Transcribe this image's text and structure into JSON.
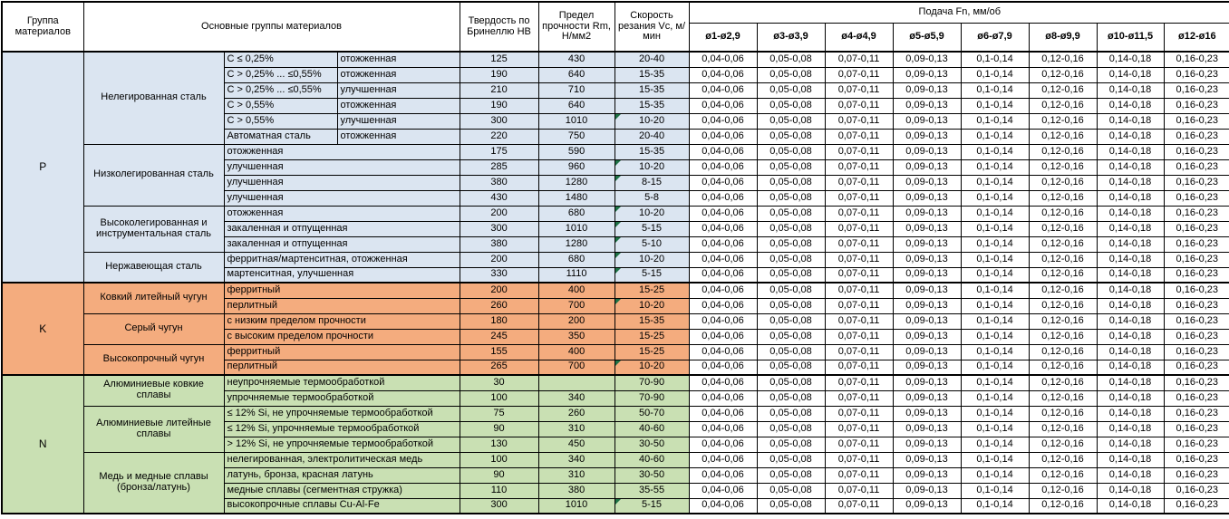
{
  "colors": {
    "group_p_blue": "#DBE5F1",
    "group_k_orange": "#F4AC7E",
    "group_n_green": "#C9E0B3",
    "note_marker_green": "#1E7145",
    "grid_border": "#000000"
  },
  "table": {
    "headers": {
      "group": "Группа материалов",
      "main_groups": "Основные группы материалов",
      "hardness": "Твердость по Бринеллю HB",
      "strength": "Предел прочности Rm, Н/мм2",
      "speed": "Скорость резания Vc, м/мин",
      "feed": "Подача Fn, мм/об",
      "diameters": [
        "ø1-ø2,9",
        "ø3-ø3,9",
        "ø4-ø4,9",
        "ø5-ø5,9",
        "ø6-ø7,9",
        "ø8-ø9,9",
        "ø10-ø11,5",
        "ø12-ø16"
      ]
    },
    "feed_values": [
      "0,04-0,06",
      "0,05-0,08",
      "0,07-0,11",
      "0,09-0,13",
      "0,1-0,14",
      "0,12-0,16",
      "0,14-0,18",
      "0,16-0,23"
    ],
    "groups": [
      {
        "id": "p",
        "letter": "P",
        "color": "#DBE5F1",
        "blocks": [
          {
            "name": "Нелегированная сталь",
            "rows": [
              {
                "c": "C ≤ 0,25%",
                "state": "отожженная",
                "hb": "125",
                "rm": "430",
                "vc": "20-40",
                "note": false
              },
              {
                "c": "C > 0,25% ... ≤0,55%",
                "state": "отожженная",
                "hb": "190",
                "rm": "640",
                "vc": "15-35",
                "note": false
              },
              {
                "c": "C > 0,25% ... ≤0,55%",
                "state": "улучшенная",
                "hb": "210",
                "rm": "710",
                "vc": "15-35",
                "note": false
              },
              {
                "c": "C > 0,55%",
                "state": "отожженная",
                "hb": "190",
                "rm": "640",
                "vc": "15-35",
                "note": false
              },
              {
                "c": "C > 0,55%",
                "state": "улучшенная",
                "hb": "300",
                "rm": "1010",
                "vc": "10-20",
                "note": true
              },
              {
                "c": "Автоматная сталь",
                "state": "отожженная",
                "hb": "220",
                "rm": "750",
                "vc": "20-40",
                "note": false
              }
            ]
          },
          {
            "name": "Низколегированная сталь",
            "rows": [
              {
                "desc": "отожженная",
                "hb": "175",
                "rm": "590",
                "vc": "15-35",
                "note": false
              },
              {
                "desc": "улучшенная",
                "hb": "285",
                "rm": "960",
                "vc": "10-20",
                "note": true
              },
              {
                "desc": "улучшенная",
                "hb": "380",
                "rm": "1280",
                "vc": "8-15",
                "note": true
              },
              {
                "desc": "улучшенная",
                "hb": "430",
                "rm": "1480",
                "vc": "5-8",
                "note": false
              }
            ]
          },
          {
            "name": "Высоколегированная и инструментальная сталь",
            "rows": [
              {
                "desc": "отожженная",
                "hb": "200",
                "rm": "680",
                "vc": "10-20",
                "note": true
              },
              {
                "desc": "закаленная и отпущенная",
                "hb": "300",
                "rm": "1010",
                "vc": "5-15",
                "note": true
              },
              {
                "desc": "закаленная и отпущенная",
                "hb": "380",
                "rm": "1280",
                "vc": "5-10",
                "note": true
              }
            ]
          },
          {
            "name": "Нержавеющая сталь",
            "rows": [
              {
                "desc": "ферритная/мартенситная, отожженная",
                "hb": "200",
                "rm": "680",
                "vc": "10-20",
                "note": true
              },
              {
                "desc": "мартенситная, улучшенная",
                "hb": "330",
                "rm": "1110",
                "vc": "5-15",
                "note": true
              }
            ]
          }
        ]
      },
      {
        "id": "k",
        "letter": "K",
        "color": "#F4AC7E",
        "blocks": [
          {
            "name": "Ковкий литейный чугун",
            "rows": [
              {
                "desc": "ферритный",
                "hb": "200",
                "rm": "400",
                "vc": "15-25",
                "note": false
              },
              {
                "desc": "перлитный",
                "hb": "260",
                "rm": "700",
                "vc": "10-20",
                "note": true
              }
            ]
          },
          {
            "name": "Серый чугун",
            "rows": [
              {
                "desc": "с низким пределом прочности",
                "hb": "180",
                "rm": "200",
                "vc": "15-35",
                "note": false
              },
              {
                "desc": "с высоким пределом прочности",
                "hb": "245",
                "rm": "350",
                "vc": "15-25",
                "note": false
              }
            ]
          },
          {
            "name": "Высокопрочный чугун",
            "rows": [
              {
                "desc": "ферритный",
                "hb": "155",
                "rm": "400",
                "vc": "15-25",
                "note": false
              },
              {
                "desc": "перлитный",
                "hb": "265",
                "rm": "700",
                "vc": "10-20",
                "note": true
              }
            ]
          }
        ]
      },
      {
        "id": "n",
        "letter": "N",
        "color": "#C9E0B3",
        "blocks": [
          {
            "name": "Алюминиевые ковкие сплавы",
            "rows": [
              {
                "desc": "неупрочняемые термообработкой",
                "hb": "30",
                "rm": "",
                "vc": "70-90",
                "note": false
              },
              {
                "desc": "упрочняемые термообработкой",
                "hb": "100",
                "rm": "340",
                "vc": "70-90",
                "note": false
              }
            ]
          },
          {
            "name": "Алюминиевые литейные сплавы",
            "rows": [
              {
                "desc": "≤ 12% Si, не упрочняемые термообработкой",
                "hb": "75",
                "rm": "260",
                "vc": "50-70",
                "note": false
              },
              {
                "desc": "≤ 12% Si, упрочняемые термообработкой",
                "hb": "90",
                "rm": "310",
                "vc": "40-60",
                "note": false
              },
              {
                "desc": "> 12% Si, не упрочняемые термообработкой",
                "hb": "130",
                "rm": "450",
                "vc": "30-50",
                "note": false
              }
            ]
          },
          {
            "name": "Медь и медные сплавы (бронза/латунь)",
            "rows": [
              {
                "desc": "нелегированная, электролитическая медь",
                "hb": "100",
                "rm": "340",
                "vc": "40-60",
                "note": false
              },
              {
                "desc": "латунь, бронза, красная латунь",
                "hb": "90",
                "rm": "310",
                "vc": "30-50",
                "note": false
              },
              {
                "desc": "медные сплавы (сегментная стружка)",
                "hb": "110",
                "rm": "380",
                "vc": "35-55",
                "note": false
              },
              {
                "desc": "высокопрочные сплавы Cu-Al-Fe",
                "hb": "300",
                "rm": "1010",
                "vc": "5-15",
                "note": true
              }
            ]
          }
        ]
      }
    ]
  }
}
